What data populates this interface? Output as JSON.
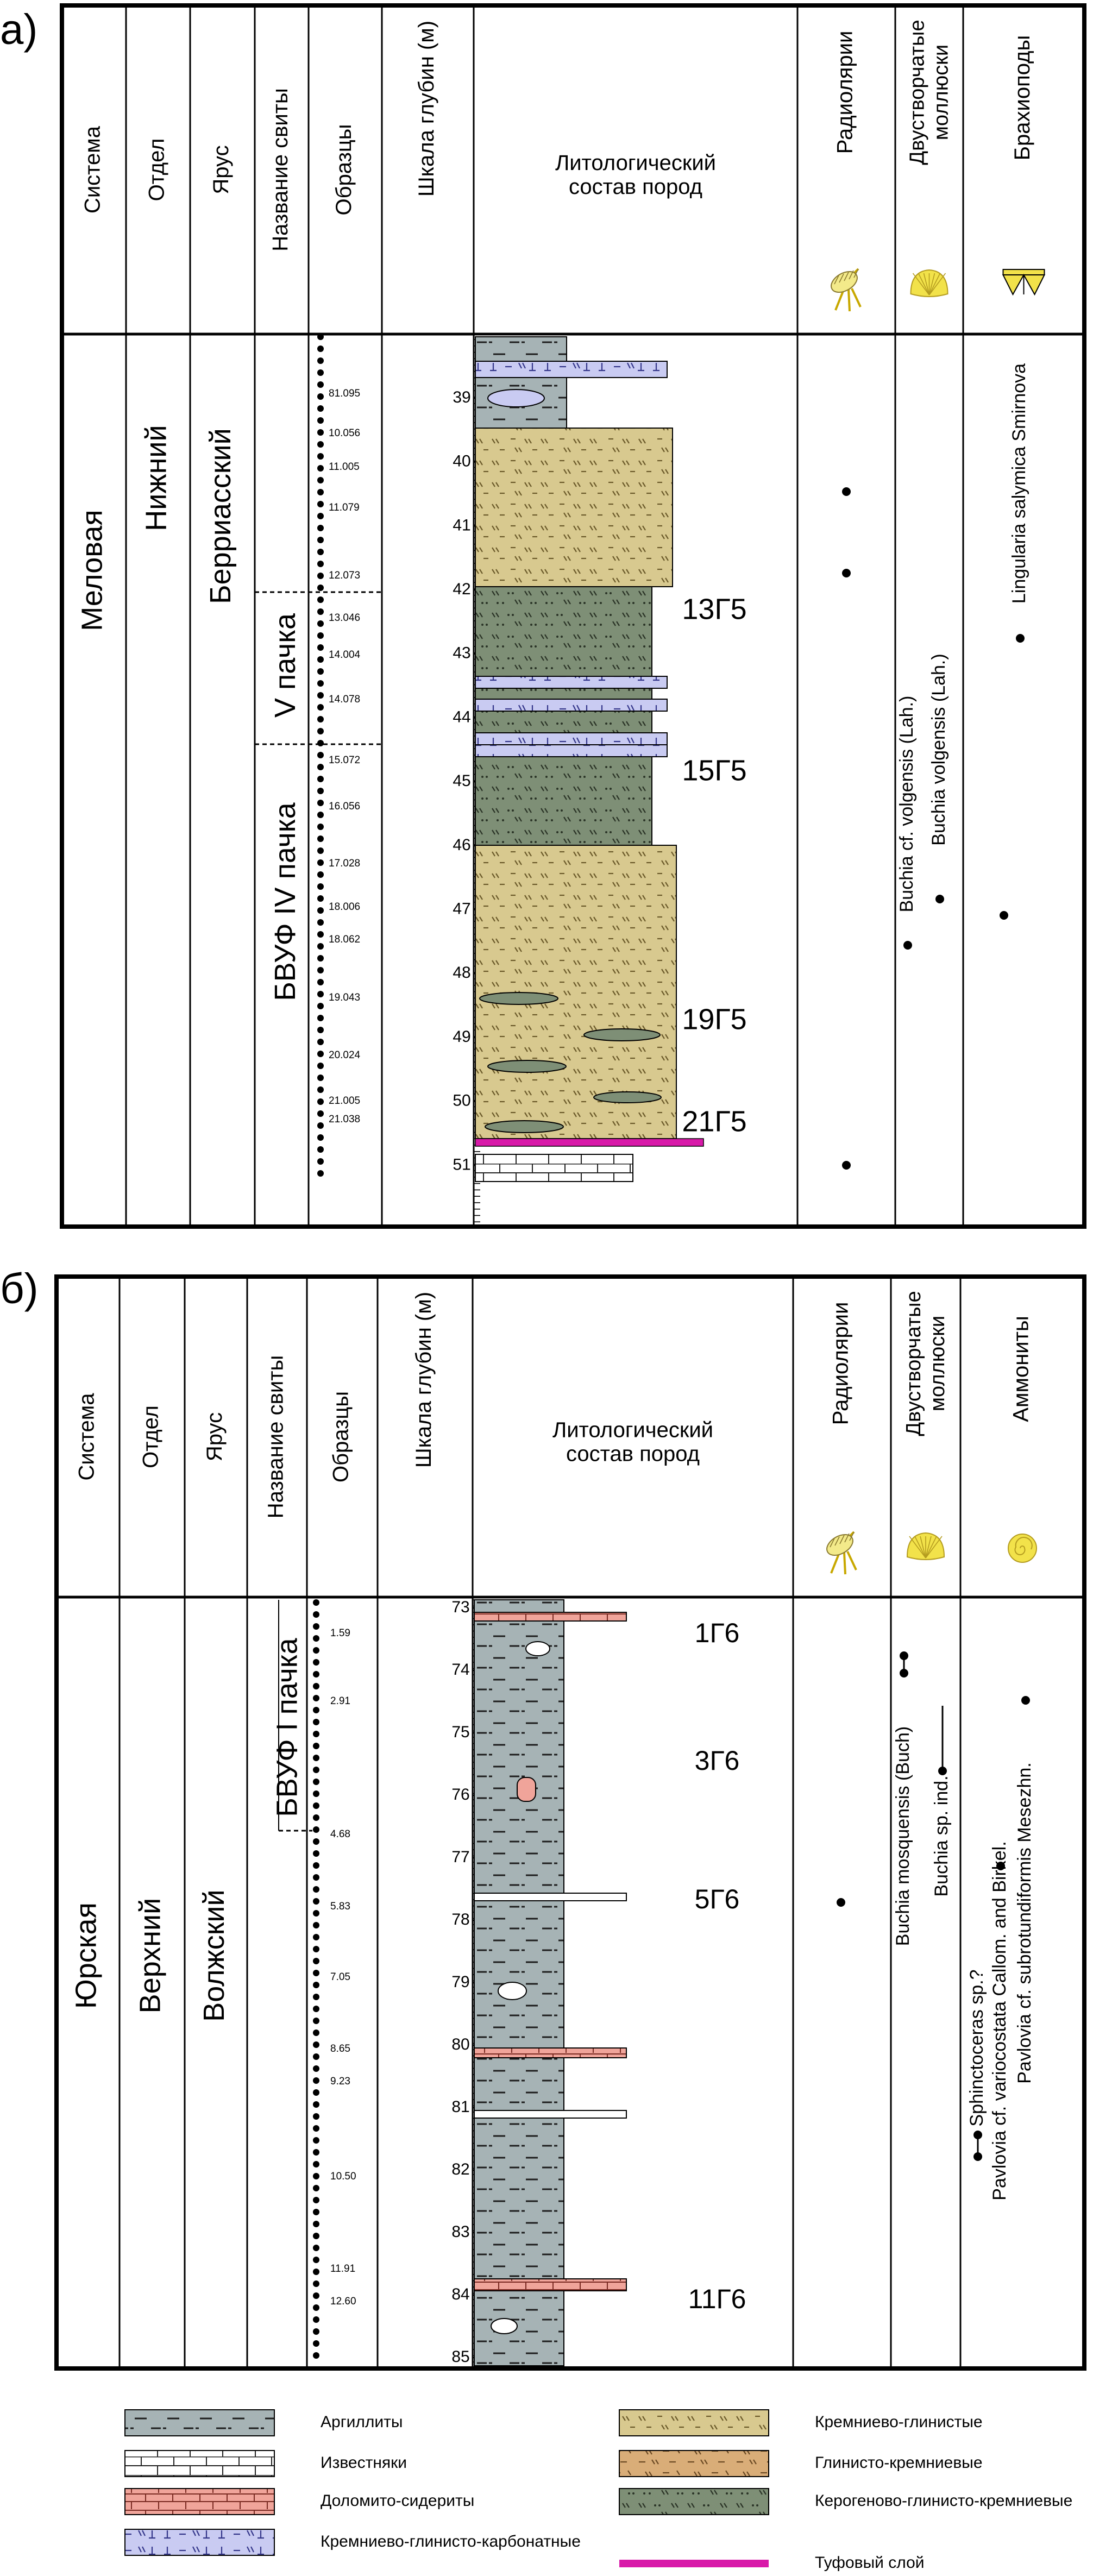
{
  "panel_a": {
    "letter": "а)",
    "headers": {
      "system": "Система",
      "department": "Отдел",
      "stage": "Ярус",
      "formation": "Название свиты",
      "samples": "Образцы",
      "depth": "Шкала глубин (м)",
      "litho_line1": "Литологический",
      "litho_line2": "состав пород",
      "radiolaria": "Радиолярии",
      "bivalve_line1": "Двустворчатые",
      "bivalve_line2": "моллюски",
      "third_group": "Брахиоподы"
    },
    "strat": {
      "system": "Меловая",
      "department": "Нижний",
      "stage": "Берриасский",
      "unit_upper": "V пачка",
      "unit_lower": "БВУФ IV пачка"
    },
    "samples": [
      "81.095",
      "10.056",
      "11.005",
      "11.079",
      "12.073",
      "13.046",
      "14.004",
      "14.078",
      "15.072",
      "16.056",
      "17.028",
      "18.006",
      "18.062",
      "19.043",
      "20.024",
      "21.005",
      "21.038"
    ],
    "depths": [
      "39",
      "40",
      "41",
      "42",
      "43",
      "44",
      "45",
      "46",
      "47",
      "48",
      "49",
      "50",
      "51"
    ],
    "bed_labels": [
      "13Г5",
      "15Г5",
      "19Г5",
      "21Г5"
    ],
    "species": {
      "bivalve_1": "Buchia cf. volgensis (Lah.)",
      "bivalve_2": "Buchia volgensis (Lah.)",
      "brachiopod": "Lingularia salymica Smirnova"
    }
  },
  "panel_b": {
    "letter": "б)",
    "headers": {
      "system": "Система",
      "department": "Отдел",
      "stage": "Ярус",
      "formation": "Название свиты",
      "samples": "Образцы",
      "depth": "Шкала глубин (м)",
      "litho_line1": "Литологический",
      "litho_line2": "состав пород",
      "radiolaria": "Радиолярии",
      "bivalve_line1": "Двустворчатые",
      "bivalve_line2": "моллюски",
      "third_group": "Аммониты"
    },
    "strat": {
      "system": "Юрская",
      "department": "Верхний",
      "stage": "Волжский",
      "unit": "БВУФ I пачка"
    },
    "samples": [
      "1.59",
      "2.91",
      "4.68",
      "5.83",
      "7.05",
      "8.65",
      "9.23",
      "10.50",
      "11.91",
      "12.60"
    ],
    "depths": [
      "73",
      "74",
      "75",
      "76",
      "77",
      "78",
      "79",
      "80",
      "81",
      "82",
      "83",
      "84",
      "85"
    ],
    "bed_labels": [
      "1Г6",
      "3Г6",
      "5Г6",
      "11Г6"
    ],
    "species": {
      "bivalve_1": "Buchia mosquensis (Buch)",
      "bivalve_2": "Buchia sp. ind.",
      "ammonite_1": "Sphinctoceras sp.?",
      "ammonite_2": "Pavlovia cf. variocostata Callom. and Birkel.",
      "ammonite_3": "Pavlovia cf. subrotundiformis Mesezhn."
    }
  },
  "legend": {
    "argillites": "Аргиллиты",
    "limestones": "Известняки",
    "dolomite_siderites": "Доломито-сидериты",
    "siliceous_clay_carbonate": "Кремниево-глинисто-карбонатные",
    "siliceous_clay": "Кремниево-глинистые",
    "clay_siliceous": "Глинисто-кремниевые",
    "kerogen_clay_siliceous": "Керогеново-глинисто-кремниевые",
    "tuff": "Туфовый слой"
  },
  "colors": {
    "argillite": "#a6b3b5",
    "siliceous_clay": "#d8c98f",
    "clay_siliceous": "#d9ad78",
    "kerogen": "#7e8f76",
    "carbonate": "#c9cbf2",
    "dolomite": "#f0a49a",
    "tuff": "#d81aa9",
    "fossil": "#f2e24a"
  }
}
